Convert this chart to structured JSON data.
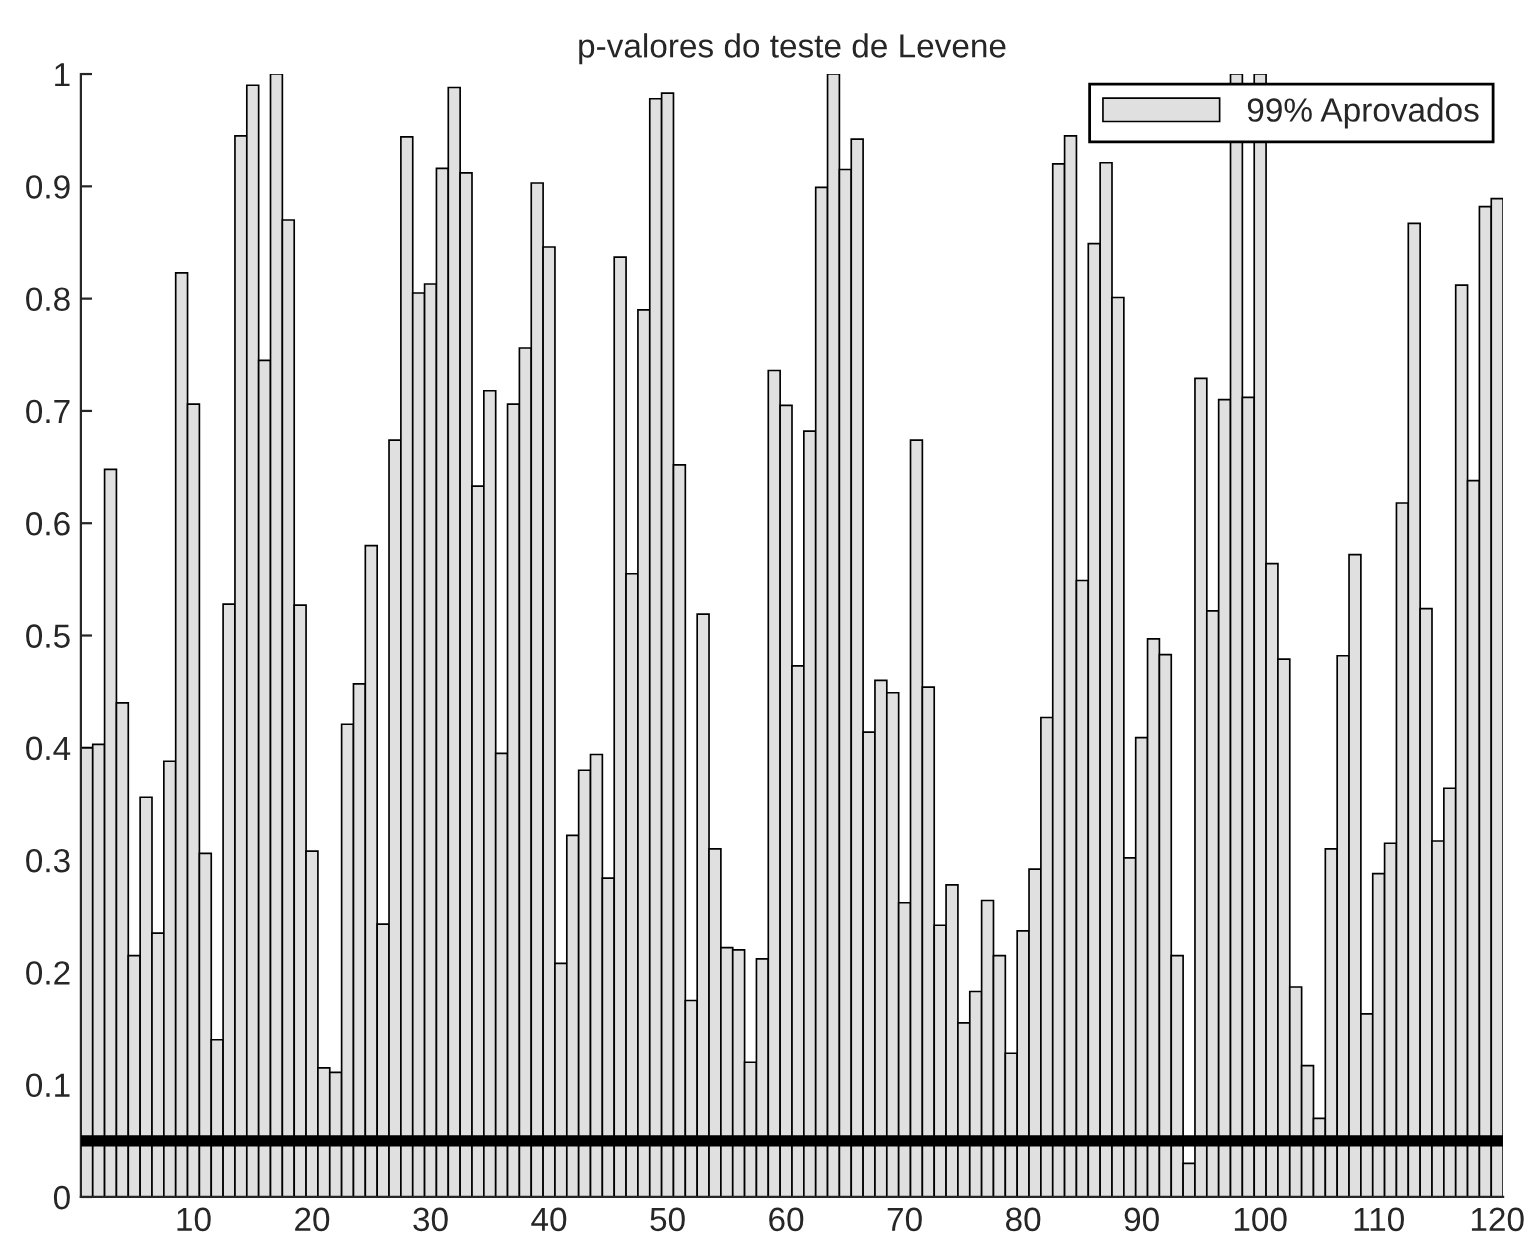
{
  "chart_data": {
    "type": "bar",
    "title": "p-valores do teste de Levene",
    "x": [
      1,
      2,
      3,
      4,
      5,
      6,
      7,
      8,
      9,
      10,
      11,
      12,
      13,
      14,
      15,
      16,
      17,
      18,
      19,
      20,
      21,
      22,
      23,
      24,
      25,
      26,
      27,
      28,
      29,
      30,
      31,
      32,
      33,
      34,
      35,
      36,
      37,
      38,
      39,
      40,
      41,
      42,
      43,
      44,
      45,
      46,
      47,
      48,
      49,
      50,
      51,
      52,
      53,
      54,
      55,
      56,
      57,
      58,
      59,
      60,
      61,
      62,
      63,
      64,
      65,
      66,
      67,
      68,
      69,
      70,
      71,
      72,
      73,
      74,
      75,
      76,
      77,
      78,
      79,
      80,
      81,
      82,
      83,
      84,
      85,
      86,
      87,
      88,
      89,
      90,
      91,
      92,
      93,
      94,
      95,
      96,
      97,
      98,
      99,
      100,
      101,
      102,
      103,
      104,
      105,
      106,
      107,
      108,
      109,
      110,
      111,
      112,
      113,
      114,
      115,
      116,
      117,
      118,
      119,
      120
    ],
    "series": [
      {
        "name": "99% Aprovados",
        "color": "#e0e0e0",
        "values": [
          0.4,
          0.403,
          0.648,
          0.44,
          0.215,
          0.356,
          0.235,
          0.388,
          0.823,
          0.706,
          0.306,
          0.14,
          0.528,
          0.945,
          0.99,
          0.745,
          1.0,
          0.87,
          0.527,
          0.308,
          0.115,
          0.111,
          0.421,
          0.457,
          0.58,
          0.243,
          0.674,
          0.944,
          0.805,
          0.813,
          0.916,
          0.988,
          0.912,
          0.633,
          0.718,
          0.395,
          0.706,
          0.756,
          0.903,
          0.846,
          0.208,
          0.322,
          0.38,
          0.394,
          0.284,
          0.837,
          0.555,
          0.79,
          0.978,
          0.983,
          0.652,
          0.175,
          0.519,
          0.31,
          0.222,
          0.22,
          0.12,
          0.212,
          0.736,
          0.705,
          0.473,
          0.682,
          0.899,
          1.0,
          0.915,
          0.942,
          0.414,
          0.46,
          0.449,
          0.262,
          0.674,
          0.454,
          0.242,
          0.278,
          0.155,
          0.183,
          0.264,
          0.215,
          0.128,
          0.237,
          0.292,
          0.427,
          0.92,
          0.945,
          0.549,
          0.849,
          0.921,
          0.801,
          0.302,
          0.409,
          0.497,
          0.483,
          0.215,
          0.03,
          0.729,
          0.522,
          0.71,
          1.0,
          0.712,
          1.0,
          0.564,
          0.479,
          0.187,
          0.117,
          0.07,
          0.31,
          0.482,
          0.572,
          0.163,
          0.288,
          0.315,
          0.618,
          0.867,
          0.524,
          0.317,
          0.364,
          0.812,
          0.638,
          0.882,
          0.889
        ]
      }
    ],
    "xlim": [
      0.5,
      120.5
    ],
    "xticks": [
      10,
      20,
      30,
      40,
      50,
      60,
      70,
      80,
      90,
      100,
      110,
      120
    ],
    "ylim": [
      0,
      1
    ],
    "yticks": [
      0,
      0.1,
      0.2,
      0.3,
      0.4,
      0.5,
      0.6,
      0.7,
      0.8,
      0.9,
      1
    ],
    "ref_lines": [
      {
        "axis": "y",
        "value": 0.05,
        "color": "#000000",
        "line_style": "solid"
      }
    ],
    "legend": "top right",
    "grid": false
  }
}
